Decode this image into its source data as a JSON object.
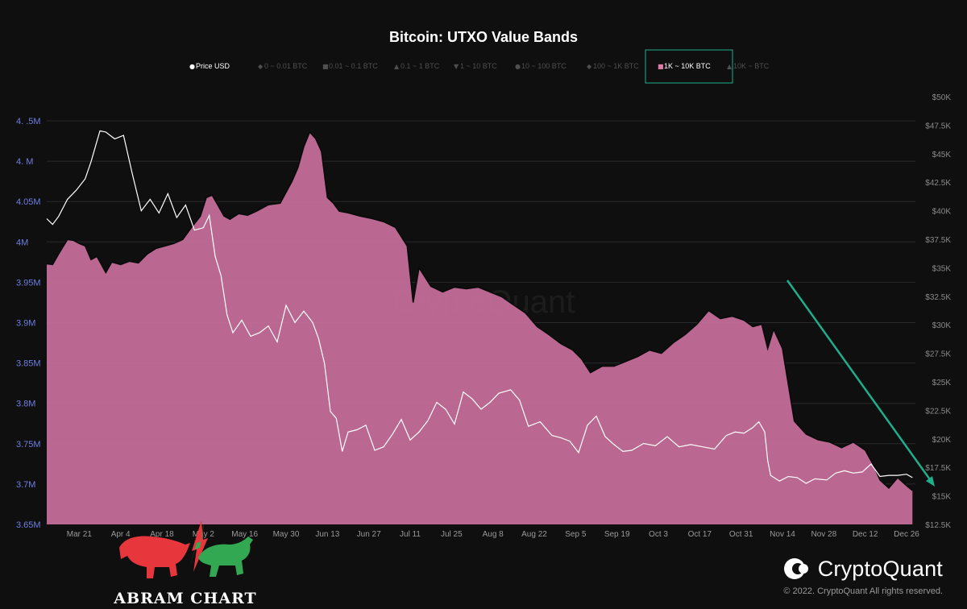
{
  "chart_data": {
    "type": "area",
    "title": "Bitcoin: UTXO Value Bands",
    "legend": [
      {
        "label": "Price USD",
        "marker": "●",
        "active": true,
        "color": "#ffffff"
      },
      {
        "label": "0 ~ 0.01 BTC",
        "marker": "◆",
        "active": false,
        "color": "#555555"
      },
      {
        "label": "0.01 ~ 0.1 BTC",
        "marker": "■",
        "active": false,
        "color": "#555555"
      },
      {
        "label": "0.1 ~ 1 BTC",
        "marker": "▲",
        "active": false,
        "color": "#555555"
      },
      {
        "label": "1 ~ 10 BTC",
        "marker": "▼",
        "active": false,
        "color": "#555555"
      },
      {
        "label": "10 ~ 100 BTC",
        "marker": "●",
        "active": false,
        "color": "#555555"
      },
      {
        "label": "100 ~ 1K BTC",
        "marker": "◆",
        "active": false,
        "color": "#555555"
      },
      {
        "label": "1K ~ 10K BTC",
        "marker": "■",
        "active": true,
        "highlighted": true,
        "color": "#e07aa8"
      },
      {
        "label": "10K ~ BTC",
        "marker": "▲",
        "active": false,
        "color": "#555555"
      }
    ],
    "legend_placement": "top-center",
    "x_tick_labels": [
      "Mar 21",
      "Apr 4",
      "Apr 18",
      "May 2",
      "May 16",
      "May 30",
      "Jun 13",
      "Jun 27",
      "Jul 11",
      "Jul 25",
      "Aug 8",
      "Aug 22",
      "Sep 5",
      "Sep 19",
      "Oct 3",
      "Oct 17",
      "Oct 31",
      "Nov 14",
      "Nov 28",
      "Dec 12",
      "Dec 26"
    ],
    "x_range": [
      "2022-03-10",
      "2022-12-29"
    ],
    "left_axis": {
      "ticks": [
        "4. .5M",
        "4. M",
        "4.05M",
        "4M",
        "3.95M",
        "3.9M",
        "3.85M",
        "3.8M",
        "3.75M",
        "3.7M",
        "3.65M"
      ],
      "tick_values": [
        4.15,
        4.1,
        4.05,
        4.0,
        3.95,
        3.9,
        3.85,
        3.8,
        3.75,
        3.7,
        3.65
      ],
      "range": [
        3.65,
        4.15
      ],
      "color": "#6f7fe0"
    },
    "right_axis": {
      "ticks": [
        "$50K",
        "$47.5K",
        "$45K",
        "$42.5K",
        "$40K",
        "$37.5K",
        "$35K",
        "$32.5K",
        "$30K",
        "$27.5K",
        "$25K",
        "$22.5K",
        "$20K",
        "$17.5K",
        "$15K",
        "$12.5K"
      ],
      "tick_values": [
        50000,
        47500,
        45000,
        42500,
        40000,
        37500,
        35000,
        32500,
        30000,
        27500,
        25000,
        22500,
        20000,
        17500,
        15000,
        12500
      ],
      "range": [
        12500,
        50000
      ]
    },
    "grid": true,
    "series": [
      {
        "name": "1K ~ 10K BTC",
        "axis": "left",
        "color": "#c9709c",
        "x": [
          "2022-03-10",
          "2022-03-12",
          "2022-03-14",
          "2022-03-17",
          "2022-03-19",
          "2022-03-21",
          "2022-03-23",
          "2022-03-25",
          "2022-03-27",
          "2022-03-30",
          "2022-04-01",
          "2022-04-04",
          "2022-04-07",
          "2022-04-10",
          "2022-04-13",
          "2022-04-16",
          "2022-04-19",
          "2022-04-22",
          "2022-04-25",
          "2022-04-28",
          "2022-05-01",
          "2022-05-03",
          "2022-05-05",
          "2022-05-07",
          "2022-05-09",
          "2022-05-11",
          "2022-05-14",
          "2022-05-17",
          "2022-05-20",
          "2022-05-24",
          "2022-05-28",
          "2022-06-01",
          "2022-06-03",
          "2022-06-05",
          "2022-06-07",
          "2022-06-09",
          "2022-06-11",
          "2022-06-13",
          "2022-06-15",
          "2022-06-17",
          "2022-06-20",
          "2022-06-24",
          "2022-06-28",
          "2022-07-02",
          "2022-07-06",
          "2022-07-10",
          "2022-07-12",
          "2022-07-14",
          "2022-07-18",
          "2022-07-22",
          "2022-07-26",
          "2022-07-30",
          "2022-08-03",
          "2022-08-07",
          "2022-08-11",
          "2022-08-15",
          "2022-08-19",
          "2022-08-23",
          "2022-08-27",
          "2022-08-31",
          "2022-09-04",
          "2022-09-07",
          "2022-09-10",
          "2022-09-14",
          "2022-09-18",
          "2022-09-22",
          "2022-09-26",
          "2022-09-30",
          "2022-10-04",
          "2022-10-08",
          "2022-10-12",
          "2022-10-16",
          "2022-10-20",
          "2022-10-24",
          "2022-10-28",
          "2022-11-01",
          "2022-11-04",
          "2022-11-07",
          "2022-11-09",
          "2022-11-11",
          "2022-11-14",
          "2022-11-18",
          "2022-11-22",
          "2022-11-26",
          "2022-11-30",
          "2022-12-04",
          "2022-12-08",
          "2022-12-12",
          "2022-12-15",
          "2022-12-17",
          "2022-12-20",
          "2022-12-23",
          "2022-12-26",
          "2022-12-28"
        ],
        "values": [
          3.973,
          3.972,
          3.985,
          4.003,
          4.002,
          3.998,
          3.995,
          3.978,
          3.982,
          3.962,
          3.975,
          3.972,
          3.976,
          3.974,
          3.985,
          3.992,
          3.995,
          3.998,
          4.003,
          4.018,
          4.032,
          4.055,
          4.058,
          4.045,
          4.032,
          4.028,
          4.035,
          4.033,
          4.038,
          4.046,
          4.048,
          4.075,
          4.092,
          4.118,
          4.136,
          4.128,
          4.112,
          4.055,
          4.048,
          4.038,
          4.036,
          4.032,
          4.029,
          4.025,
          4.018,
          3.995,
          3.925,
          3.968,
          3.945,
          3.938,
          3.944,
          3.942,
          3.944,
          3.938,
          3.932,
          3.922,
          3.912,
          3.895,
          3.885,
          3.874,
          3.866,
          3.855,
          3.838,
          3.846,
          3.846,
          3.852,
          3.858,
          3.866,
          3.862,
          3.875,
          3.885,
          3.898,
          3.915,
          3.905,
          3.908,
          3.903,
          3.895,
          3.898,
          3.868,
          3.892,
          3.868,
          3.778,
          3.762,
          3.755,
          3.752,
          3.745,
          3.752,
          3.742,
          3.722,
          3.705,
          3.695,
          3.708,
          3.698,
          3.692
        ]
      },
      {
        "name": "Price USD",
        "axis": "right",
        "color": "#ffffff",
        "x": [
          "2022-03-10",
          "2022-03-12",
          "2022-03-14",
          "2022-03-17",
          "2022-03-20",
          "2022-03-23",
          "2022-03-25",
          "2022-03-28",
          "2022-03-30",
          "2022-04-02",
          "2022-04-05",
          "2022-04-08",
          "2022-04-11",
          "2022-04-14",
          "2022-04-17",
          "2022-04-20",
          "2022-04-23",
          "2022-04-26",
          "2022-04-29",
          "2022-05-02",
          "2022-05-04",
          "2022-05-06",
          "2022-05-08",
          "2022-05-10",
          "2022-05-12",
          "2022-05-15",
          "2022-05-18",
          "2022-05-21",
          "2022-05-24",
          "2022-05-27",
          "2022-05-30",
          "2022-06-02",
          "2022-06-05",
          "2022-06-08",
          "2022-06-10",
          "2022-06-12",
          "2022-06-14",
          "2022-06-16",
          "2022-06-18",
          "2022-06-20",
          "2022-06-23",
          "2022-06-26",
          "2022-06-29",
          "2022-07-02",
          "2022-07-05",
          "2022-07-08",
          "2022-07-11",
          "2022-07-14",
          "2022-07-17",
          "2022-07-20",
          "2022-07-23",
          "2022-07-26",
          "2022-07-29",
          "2022-08-01",
          "2022-08-04",
          "2022-08-07",
          "2022-08-10",
          "2022-08-14",
          "2022-08-17",
          "2022-08-20",
          "2022-08-24",
          "2022-08-28",
          "2022-08-31",
          "2022-09-03",
          "2022-09-06",
          "2022-09-09",
          "2022-09-12",
          "2022-09-15",
          "2022-09-18",
          "2022-09-21",
          "2022-09-24",
          "2022-09-28",
          "2022-10-02",
          "2022-10-06",
          "2022-10-10",
          "2022-10-14",
          "2022-10-18",
          "2022-10-22",
          "2022-10-26",
          "2022-10-29",
          "2022-11-01",
          "2022-11-04",
          "2022-11-06",
          "2022-11-08",
          "2022-11-09",
          "2022-11-10",
          "2022-11-13",
          "2022-11-16",
          "2022-11-19",
          "2022-11-22",
          "2022-11-25",
          "2022-11-29",
          "2022-12-02",
          "2022-12-05",
          "2022-12-08",
          "2022-12-11",
          "2022-12-14",
          "2022-12-17",
          "2022-12-20",
          "2022-12-23",
          "2022-12-26",
          "2022-12-28"
        ],
        "values": [
          39300,
          38800,
          39500,
          41000,
          41800,
          42800,
          44300,
          47000,
          46900,
          46300,
          46600,
          43200,
          40000,
          41000,
          39800,
          41500,
          39400,
          40500,
          38300,
          38500,
          39600,
          36000,
          34300,
          30900,
          29300,
          30400,
          29000,
          29300,
          29900,
          28500,
          31700,
          30200,
          31200,
          30200,
          28800,
          26600,
          22400,
          21800,
          18900,
          20600,
          20800,
          21200,
          19000,
          19300,
          20400,
          21700,
          19900,
          20600,
          21600,
          23200,
          22600,
          21300,
          24100,
          23500,
          22600,
          23200,
          24000,
          24300,
          23400,
          21100,
          21500,
          20300,
          20100,
          19800,
          18800,
          21200,
          22000,
          20200,
          19500,
          18900,
          19000,
          19600,
          19400,
          20200,
          19300,
          19500,
          19300,
          19100,
          20300,
          20600,
          20500,
          21000,
          21500,
          20600,
          18100,
          16800,
          16300,
          16700,
          16600,
          16100,
          16500,
          16400,
          17000,
          17200,
          17000,
          17100,
          17800,
          16700,
          16800,
          16800,
          16900,
          16600
        ]
      }
    ],
    "annotation": "green downward-trend arrow near late Nov – Dec 26"
  },
  "watermark": "CryptoQuant",
  "brand": {
    "name": "CryptoQuant",
    "copyright": "© 2022. CryptoQuant All rights reserved.",
    "logo_icon": "cryptoquant-logo-icon"
  },
  "overlay_logo": {
    "name": "ABRAM CHART",
    "icon": "bear-bull-icon"
  },
  "colors": {
    "background": "#0f0f10",
    "area_fill": "#c9709c",
    "area_line": "#0a0a0a",
    "price_line": "#ffffff",
    "arrow": "#1fae8a",
    "legend_highlight_border": "#1fae8a"
  }
}
